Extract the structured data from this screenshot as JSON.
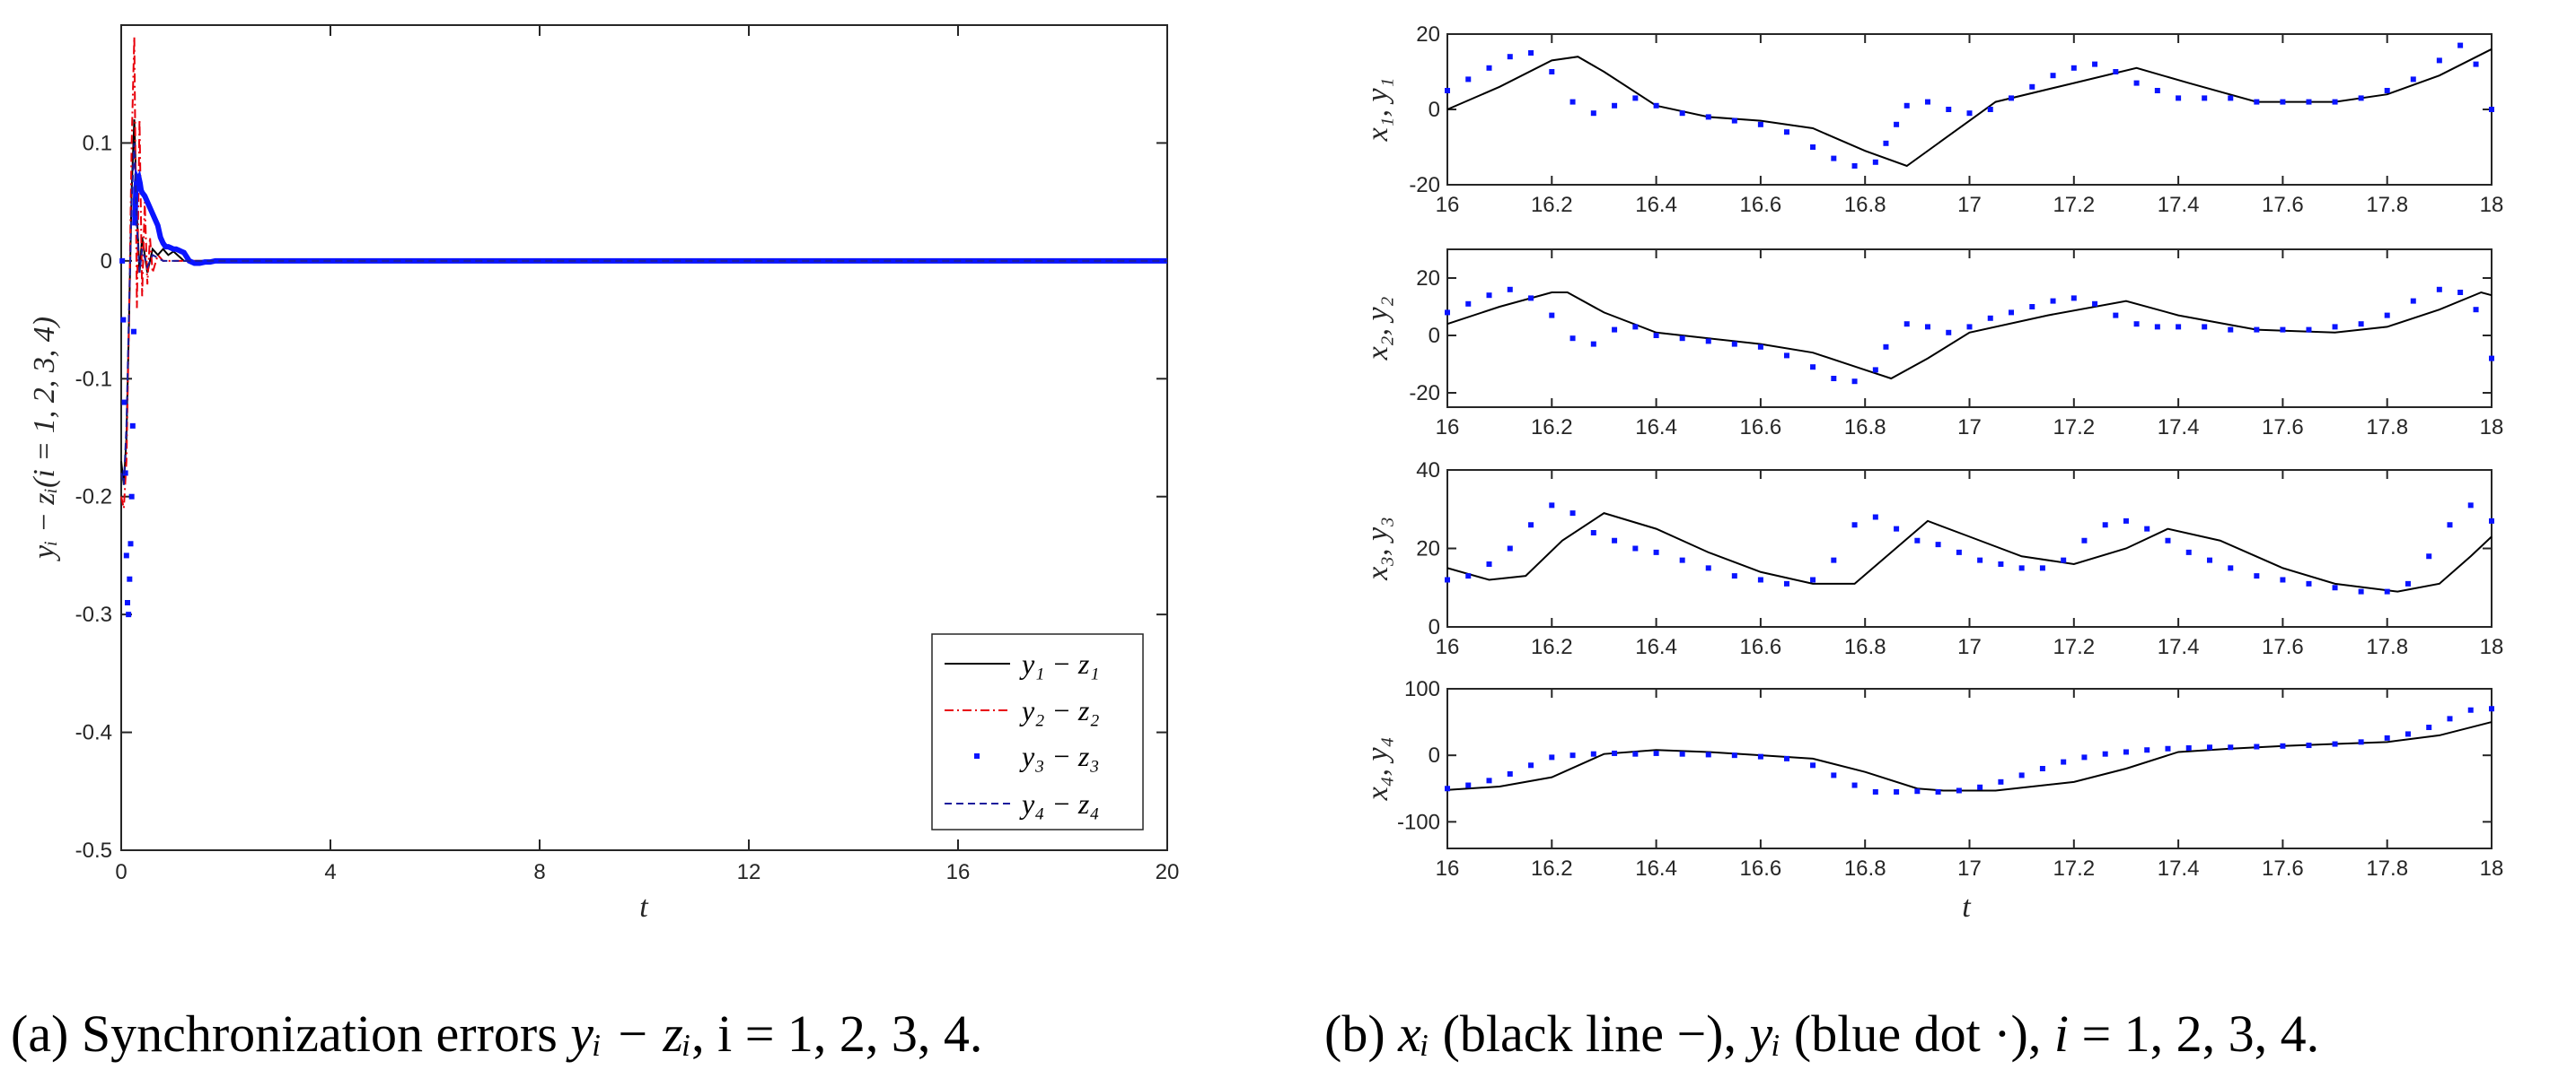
{
  "chart_data": [
    {
      "id": "a",
      "type": "line",
      "caption": {
        "prefix": "(a)  Synchronization errors ",
        "math": "yᵢ − zᵢ",
        "suffix": ", i = 1, 2, 3, 4."
      },
      "xlabel": "t",
      "ylabel": "yᵢ − zᵢ(i = 1, 2, 3, 4)",
      "xlim": [
        0,
        20
      ],
      "ylim": [
        -0.5,
        0.2
      ],
      "xticks": [
        0,
        4,
        8,
        12,
        16,
        20
      ],
      "yticks": [
        -0.5,
        -0.4,
        -0.3,
        -0.2,
        -0.1,
        0,
        0.1
      ],
      "ytick_labels": [
        "-0.5",
        "-0.4",
        "-0.3",
        "-0.2",
        "-0.1",
        "0",
        "0.1"
      ],
      "legend_position": "bottom-right",
      "series": [
        {
          "name": "y₁ − z₁",
          "style": "solid",
          "color": "#000000",
          "x": [
            0,
            0.05,
            0.1,
            0.15,
            0.2,
            0.25,
            0.3,
            0.35,
            0.4,
            0.5,
            0.6,
            0.7,
            0.8,
            0.9,
            1.0,
            1.2,
            1.5,
            2.0,
            20
          ],
          "y": [
            -0.17,
            -0.19,
            -0.15,
            -0.05,
            0.06,
            0.12,
            0.04,
            -0.01,
            0.02,
            -0.01,
            0.01,
            0.005,
            0.01,
            0.005,
            0.008,
            0.0,
            0.0,
            0.0,
            0.0
          ]
        },
        {
          "name": "y₂ − z₂",
          "style": "dashdot",
          "color": "#e8000b",
          "x": [
            0,
            0.05,
            0.1,
            0.15,
            0.2,
            0.25,
            0.3,
            0.35,
            0.4,
            0.45,
            0.5,
            0.55,
            0.6,
            0.7,
            0.8,
            1.0,
            20
          ],
          "y": [
            -0.2,
            -0.21,
            -0.17,
            -0.05,
            0.1,
            0.19,
            -0.04,
            0.12,
            -0.03,
            0.05,
            -0.02,
            0.02,
            -0.01,
            0.005,
            0.0,
            0.0,
            0.0
          ]
        },
        {
          "name": "y₃ − z₃",
          "style": "dots",
          "color": "#0a14ff",
          "x": [
            0.02,
            0.04,
            0.06,
            0.08,
            0.1,
            0.12,
            0.14,
            0.16,
            0.18,
            0.2,
            0.22,
            0.24,
            0.26,
            0.28,
            0.3,
            0.32,
            0.34,
            0.36,
            0.38,
            0.4,
            0.45,
            0.5,
            0.55,
            0.6,
            0.65,
            0.7,
            0.75,
            0.8,
            0.85,
            0.9,
            0.95,
            1.0,
            1.05,
            1.1,
            1.15,
            1.2,
            1.3,
            1.4,
            1.5,
            1.6,
            1.7,
            1.8,
            1.9,
            2.0,
            2.2,
            2.4,
            2.6,
            2.8,
            3.0,
            3.5,
            4,
            5,
            6,
            7,
            8,
            9,
            10,
            11,
            12,
            13,
            14,
            15,
            16,
            17,
            18,
            19,
            20
          ],
          "y": [
            0.0,
            -0.05,
            -0.12,
            -0.18,
            -0.25,
            -0.29,
            -0.3,
            -0.27,
            -0.24,
            -0.2,
            -0.14,
            -0.06,
            0.03,
            0.06,
            0.07,
            0.068,
            0.07,
            0.066,
            0.06,
            0.058,
            0.055,
            0.05,
            0.045,
            0.04,
            0.035,
            0.03,
            0.02,
            0.015,
            0.012,
            0.012,
            0.011,
            0.01,
            0.01,
            0.009,
            0.008,
            0.007,
            0.0,
            -0.002,
            -0.002,
            -0.001,
            -0.001,
            0.0,
            0.0,
            0.0,
            0.0,
            0.0,
            0.0,
            0.0,
            0.0,
            0.0,
            0.0,
            0.0,
            0.0,
            0.0,
            0.0,
            0.0,
            0.0,
            0.0,
            0.0,
            0.0,
            0.0,
            0.0,
            0.0,
            0.0,
            0.0,
            0.0,
            0.0
          ]
        },
        {
          "name": "y₄ − z₄",
          "style": "dashed",
          "color": "#1c1c9c",
          "x": [
            0,
            0.05,
            0.1,
            0.15,
            0.2,
            0.25,
            0.3,
            0.35,
            0.4,
            0.5,
            0.6,
            0.8,
            1.0,
            20
          ],
          "y": [
            -0.18,
            -0.19,
            -0.14,
            -0.04,
            0.05,
            0.1,
            0.03,
            -0.01,
            0.01,
            -0.005,
            0.005,
            0.0,
            0.0,
            0.0
          ]
        }
      ]
    },
    {
      "id": "b",
      "type": "line",
      "caption": {
        "prefix": "(b)  ",
        "math1": "xᵢ",
        "mid1": " (black line −), ",
        "math2": "yᵢ",
        "mid2": " (blue dot ·), ",
        "math3": "i",
        "suffix": " = 1, 2, 3, 4."
      },
      "xlabel": "t",
      "xlim": [
        16,
        18
      ],
      "xticks": [
        16,
        16.2,
        16.4,
        16.6,
        16.8,
        17,
        17.2,
        17.4,
        17.6,
        17.8,
        18
      ],
      "xtick_labels": [
        "16",
        "16.2",
        "16.4",
        "16.6",
        "16.8",
        "17",
        "17.2",
        "17.4",
        "17.6",
        "17.8",
        "18"
      ],
      "subplots": [
        {
          "ylabel": "x₁, y₁",
          "ylim": [
            -20,
            20
          ],
          "yticks": [
            -20,
            0,
            20
          ],
          "ytick_labels": [
            "-20",
            "0",
            "20"
          ],
          "x_line": [
            16,
            16.1,
            16.2,
            16.25,
            16.3,
            16.4,
            16.5,
            16.6,
            16.7,
            16.8,
            16.88,
            16.95,
            17.05,
            17.2,
            17.32,
            17.42,
            17.55,
            17.7,
            17.8,
            17.9,
            18
          ],
          "x": [
            16,
            16.1,
            16.2,
            16.25,
            16.3,
            16.4,
            16.5,
            16.6,
            16.7,
            16.8,
            16.88,
            16.95,
            17.05,
            17.2,
            17.32,
            17.42,
            17.55,
            17.7,
            17.8,
            17.9,
            18
          ],
          "y_x": [
            0,
            6,
            13,
            14,
            10,
            1,
            -2,
            -3,
            -5,
            -11,
            -15,
            -8,
            2,
            7,
            11,
            7,
            2,
            2,
            4,
            9,
            16
          ],
          "x_dots": [
            16,
            16.04,
            16.08,
            16.12,
            16.16,
            16.2,
            16.24,
            16.28,
            16.32,
            16.36,
            16.4,
            16.45,
            16.5,
            16.55,
            16.6,
            16.65,
            16.7,
            16.74,
            16.78,
            16.82,
            16.84,
            16.86,
            16.88,
            16.92,
            16.96,
            17.0,
            17.04,
            17.08,
            17.12,
            17.16,
            17.2,
            17.24,
            17.28,
            17.32,
            17.36,
            17.4,
            17.45,
            17.5,
            17.55,
            17.6,
            17.65,
            17.7,
            17.75,
            17.8,
            17.85,
            17.9,
            17.94,
            17.97,
            18
          ],
          "y_dots": [
            5,
            8,
            11,
            14,
            15,
            10,
            2,
            -1,
            1,
            3,
            1,
            -1,
            -2,
            -3,
            -4,
            -6,
            -10,
            -13,
            -15,
            -14,
            -9,
            -4,
            1,
            2,
            0,
            -1,
            0,
            3,
            6,
            9,
            11,
            12,
            10,
            7,
            5,
            3,
            3,
            3,
            2,
            2,
            2,
            2,
            3,
            5,
            8,
            13,
            17,
            12,
            0
          ]
        },
        {
          "ylabel": "x₂, y₂",
          "ylim": [
            -25,
            30
          ],
          "yticks": [
            -20,
            0,
            20
          ],
          "ytick_labels": [
            "-20",
            "0",
            "20"
          ],
          "x_line": [
            16,
            16.1,
            16.2,
            16.23,
            16.3,
            16.4,
            16.5,
            16.6,
            16.7,
            16.8,
            16.85,
            16.92,
            17.0,
            17.15,
            17.3,
            17.4,
            17.55,
            17.7,
            17.8,
            17.9,
            17.98,
            18
          ],
          "y_x": [
            4,
            10,
            15,
            15,
            8,
            1,
            -1,
            -3,
            -6,
            -12,
            -15,
            -8,
            1,
            7,
            12,
            7,
            2,
            1,
            3,
            9,
            15,
            14
          ],
          "x_dots": [
            16,
            16.04,
            16.08,
            16.12,
            16.16,
            16.2,
            16.24,
            16.28,
            16.32,
            16.36,
            16.4,
            16.45,
            16.5,
            16.55,
            16.6,
            16.65,
            16.7,
            16.74,
            16.78,
            16.82,
            16.84,
            16.88,
            16.92,
            16.96,
            17.0,
            17.04,
            17.08,
            17.12,
            17.16,
            17.2,
            17.24,
            17.28,
            17.32,
            17.36,
            17.4,
            17.45,
            17.5,
            17.55,
            17.6,
            17.65,
            17.7,
            17.75,
            17.8,
            17.85,
            17.9,
            17.94,
            17.97,
            18
          ],
          "y_dots": [
            8,
            11,
            14,
            16,
            13,
            7,
            -1,
            -3,
            2,
            3,
            0,
            -1,
            -2,
            -3,
            -4,
            -7,
            -11,
            -15,
            -16,
            -12,
            -4,
            4,
            3,
            1,
            3,
            6,
            8,
            10,
            12,
            13,
            11,
            7,
            4,
            3,
            3,
            3,
            2,
            2,
            2,
            2,
            3,
            4,
            7,
            12,
            16,
            15,
            9,
            -8
          ]
        },
        {
          "ylabel": "x₃, y₃",
          "ylim": [
            0,
            40
          ],
          "yticks": [
            0,
            20,
            40
          ],
          "ytick_labels": [
            "0",
            "20",
            "40"
          ],
          "x_line": [
            16,
            16.08,
            16.15,
            16.22,
            16.3,
            16.4,
            16.5,
            16.6,
            16.7,
            16.78,
            16.85,
            16.92,
            17.0,
            17.1,
            17.2,
            17.3,
            17.38,
            17.48,
            17.6,
            17.7,
            17.82,
            17.9,
            17.96,
            18
          ],
          "y_x": [
            15,
            12,
            13,
            22,
            29,
            25,
            19,
            14,
            11,
            11,
            19,
            27,
            23,
            18,
            16,
            20,
            25,
            22,
            15,
            11,
            9,
            11,
            18,
            23
          ],
          "x_dots": [
            16,
            16.04,
            16.08,
            16.12,
            16.16,
            16.2,
            16.24,
            16.28,
            16.32,
            16.36,
            16.4,
            16.45,
            16.5,
            16.55,
            16.6,
            16.65,
            16.7,
            16.74,
            16.78,
            16.82,
            16.86,
            16.9,
            16.94,
            16.98,
            17.02,
            17.06,
            17.1,
            17.14,
            17.18,
            17.22,
            17.26,
            17.3,
            17.34,
            17.38,
            17.42,
            17.46,
            17.5,
            17.55,
            17.6,
            17.65,
            17.7,
            17.75,
            17.8,
            17.84,
            17.88,
            17.92,
            17.96,
            18
          ],
          "y_dots": [
            12,
            13,
            16,
            20,
            26,
            31,
            29,
            24,
            22,
            20,
            19,
            17,
            15,
            13,
            12,
            11,
            12,
            17,
            26,
            28,
            25,
            22,
            21,
            19,
            17,
            16,
            15,
            15,
            17,
            22,
            26,
            27,
            25,
            22,
            19,
            17,
            15,
            13,
            12,
            11,
            10,
            9,
            9,
            11,
            18,
            26,
            31,
            27
          ]
        },
        {
          "ylabel": "x₄, y₄",
          "ylim": [
            -140,
            100
          ],
          "yticks": [
            -100,
            0,
            100
          ],
          "ytick_labels": [
            "-100",
            "0",
            "100"
          ],
          "x_line": [
            16,
            16.1,
            16.2,
            16.3,
            16.4,
            16.5,
            16.6,
            16.7,
            16.8,
            16.9,
            16.95,
            17.05,
            17.2,
            17.3,
            17.4,
            17.5,
            17.6,
            17.7,
            17.8,
            17.9,
            18
          ],
          "y_x": [
            -52,
            -47,
            -33,
            2,
            8,
            5,
            0,
            -5,
            -25,
            -50,
            -53,
            -53,
            -40,
            -20,
            5,
            10,
            14,
            17,
            20,
            30,
            50
          ],
          "x_dots": [
            16,
            16.04,
            16.08,
            16.12,
            16.16,
            16.2,
            16.24,
            16.28,
            16.32,
            16.36,
            16.4,
            16.45,
            16.5,
            16.55,
            16.6,
            16.65,
            16.7,
            16.74,
            16.78,
            16.82,
            16.86,
            16.9,
            16.94,
            16.98,
            17.02,
            17.06,
            17.1,
            17.14,
            17.18,
            17.22,
            17.26,
            17.3,
            17.34,
            17.38,
            17.42,
            17.46,
            17.5,
            17.55,
            17.6,
            17.65,
            17.7,
            17.75,
            17.8,
            17.84,
            17.88,
            17.92,
            17.96,
            18
          ],
          "y_dots": [
            -50,
            -45,
            -38,
            -28,
            -15,
            -3,
            0,
            2,
            3,
            2,
            3,
            2,
            1,
            0,
            -2,
            -5,
            -15,
            -30,
            -45,
            -55,
            -55,
            -54,
            -55,
            -53,
            -48,
            -40,
            -30,
            -20,
            -10,
            -3,
            2,
            5,
            8,
            10,
            11,
            12,
            12,
            13,
            14,
            15,
            17,
            20,
            26,
            32,
            42,
            55,
            68,
            70
          ]
        }
      ]
    }
  ]
}
